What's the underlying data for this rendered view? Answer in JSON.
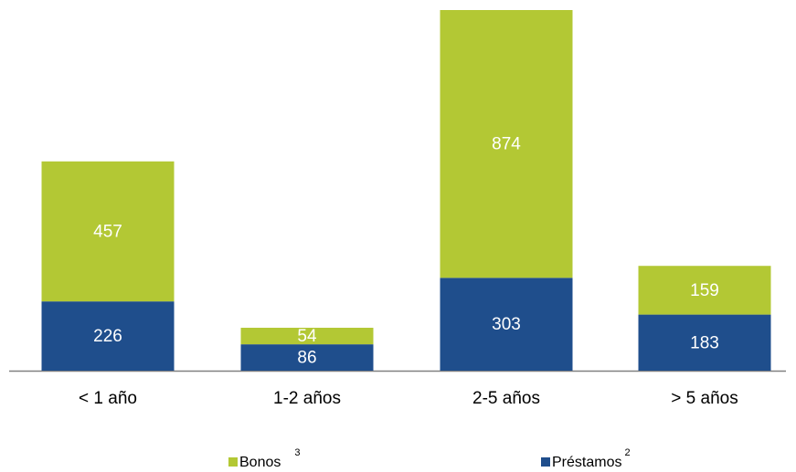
{
  "chart_data": {
    "type": "stacked_bar",
    "categories": [
      "< 1 año",
      "1-2 años",
      "2-5 años",
      "> 5 años"
    ],
    "series": [
      {
        "name": "Préstamos",
        "footnote": "2",
        "color": "#1f4e8c",
        "values": [
          226,
          86,
          303,
          183
        ]
      },
      {
        "name": "Bonos",
        "footnote": "3",
        "color": "#b3c834",
        "values": [
          457,
          54,
          874,
          159
        ]
      }
    ],
    "legend_order": [
      1,
      0
    ]
  }
}
